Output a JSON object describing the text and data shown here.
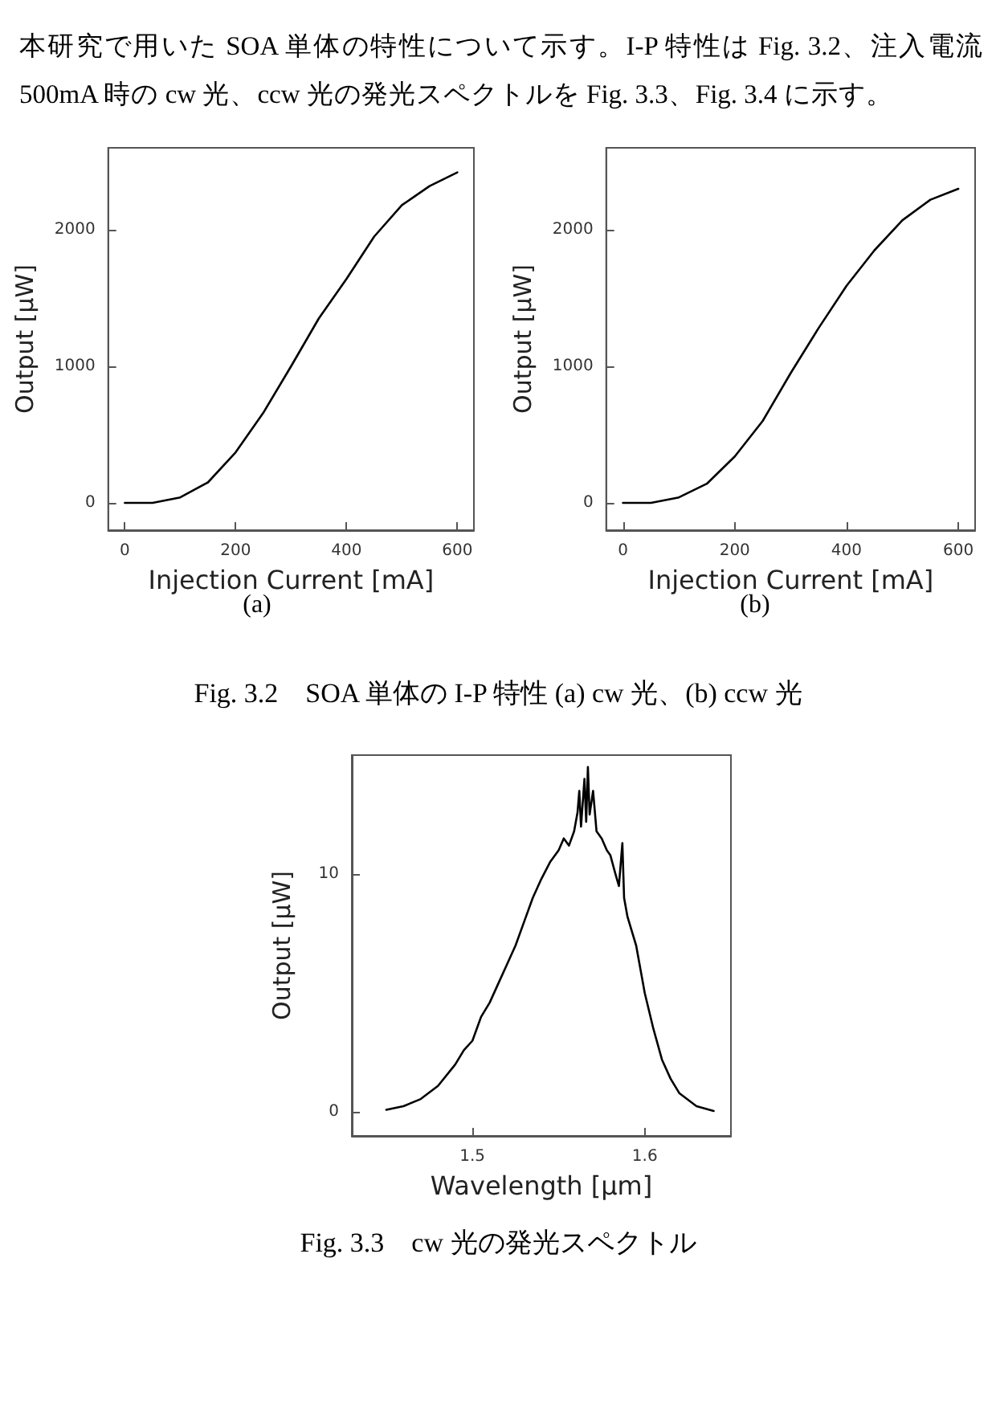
{
  "chart_data": [
    {
      "type": "line",
      "xlabel": "Injection Current [mA]",
      "ylabel": "Output [μW]",
      "annotations": [
        "本研究で用いた SOA 単体の特性について示す。I-P 特性は Fig. 3.2、注入電流 500mA 時の cw 光、ccw 光の発光スペクトルを Fig. 3.3、Fig. 3.4 に示す。",
        "(a)",
        "Fig. 3.2　SOA 単体の I-P 特性  (a) cw 光、(b) ccw 光"
      ],
      "x": [
        0,
        50,
        100,
        150,
        200,
        250,
        300,
        350,
        400,
        450,
        500,
        550,
        600
      ],
      "series": [
        {
          "color": "#000000",
          "values": [
            0,
            0,
            40,
            150,
            370,
            660,
            1000,
            1350,
            1640,
            1950,
            2180,
            2320,
            2420
          ]
        }
      ],
      "xlim": [
        -30,
        630
      ],
      "xticks": [
        0,
        200,
        400,
        600
      ],
      "ylim": [
        -200,
        2600
      ],
      "yticks": [
        0,
        1000,
        2000
      ],
      "grid": false,
      "marker": "none",
      "line_style": "solid"
    },
    {
      "type": "line",
      "xlabel": "Injection Current [mA]",
      "ylabel": "Output [μW]",
      "annotations": [
        "(b)"
      ],
      "x": [
        0,
        50,
        100,
        150,
        200,
        250,
        300,
        350,
        400,
        450,
        500,
        550,
        600
      ],
      "series": [
        {
          "color": "#000000",
          "values": [
            0,
            0,
            40,
            140,
            340,
            600,
            950,
            1280,
            1590,
            1850,
            2070,
            2220,
            2300
          ]
        }
      ],
      "xlim": [
        -30,
        630
      ],
      "xticks": [
        0,
        200,
        400,
        600
      ],
      "ylim": [
        -200,
        2600
      ],
      "yticks": [
        0,
        1000,
        2000
      ],
      "grid": false,
      "marker": "none",
      "line_style": "solid"
    },
    {
      "type": "line",
      "xlabel": "Wavelength [μm]",
      "ylabel": "Output [μW]",
      "annotations": [
        "Fig. 3.3　cw 光の発光スペクトル"
      ],
      "x": [
        1.45,
        1.46,
        1.47,
        1.48,
        1.49,
        1.495,
        1.5,
        1.505,
        1.51,
        1.515,
        1.52,
        1.525,
        1.53,
        1.535,
        1.54,
        1.545,
        1.55,
        1.553,
        1.556,
        1.559,
        1.561,
        1.562,
        1.563,
        1.565,
        1.566,
        1.567,
        1.568,
        1.57,
        1.572,
        1.575,
        1.578,
        1.58,
        1.583,
        1.585,
        1.587,
        1.588,
        1.59,
        1.595,
        1.6,
        1.605,
        1.61,
        1.615,
        1.62,
        1.63,
        1.64
      ],
      "series": [
        {
          "color": "#000000",
          "values": [
            0.1,
            0.25,
            0.55,
            1.1,
            2.0,
            2.6,
            3.0,
            4.0,
            4.6,
            5.4,
            6.2,
            7.0,
            8.0,
            9.0,
            9.8,
            10.5,
            11.0,
            11.5,
            11.2,
            11.8,
            12.6,
            13.5,
            12.0,
            14.0,
            12.2,
            14.5,
            12.5,
            13.5,
            11.8,
            11.5,
            11.0,
            10.8,
            10.0,
            9.5,
            11.3,
            9.0,
            8.2,
            7.0,
            5.0,
            3.5,
            2.2,
            1.4,
            0.8,
            0.25,
            0.05
          ]
        }
      ],
      "xlim": [
        1.43,
        1.65
      ],
      "xticks": [
        1.5,
        1.6
      ],
      "ylim": [
        -1,
        15
      ],
      "yticks": [
        0,
        10
      ],
      "grid": false,
      "marker": "none",
      "line_style": "solid"
    }
  ]
}
